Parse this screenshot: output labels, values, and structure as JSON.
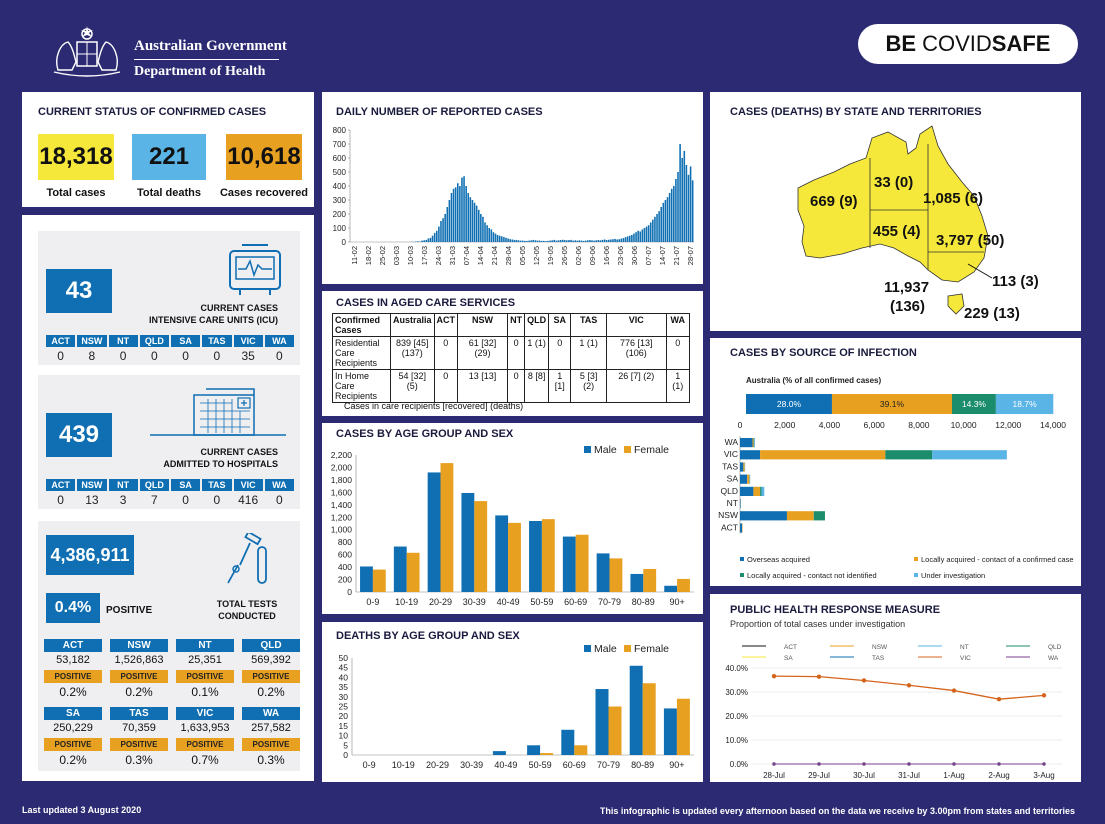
{
  "header": {
    "gov_line1": "Australian Government",
    "gov_line2": "Department of Health",
    "covid_be": "BE",
    "covid_covid": "COVID",
    "covid_safe": "SAFE"
  },
  "status": {
    "title": "CURRENT STATUS OF CONFIRMED CASES",
    "total_cases": "18,318",
    "total_cases_label": "Total cases",
    "total_deaths": "221",
    "total_deaths_label": "Total deaths",
    "recovered": "10,618",
    "recovered_label": "Cases recovered"
  },
  "states": [
    "ACT",
    "NSW",
    "NT",
    "QLD",
    "SA",
    "TAS",
    "VIC",
    "WA"
  ],
  "icu": {
    "value": "43",
    "label1": "CURRENT CASES",
    "label2": "INTENSIVE CARE UNITS (ICU)",
    "by_state": [
      "0",
      "8",
      "0",
      "0",
      "0",
      "0",
      "35",
      "0"
    ]
  },
  "hospital": {
    "value": "439",
    "label1": "CURRENT CASES",
    "label2": "ADMITTED TO HOSPITALS",
    "by_state": [
      "0",
      "13",
      "3",
      "7",
      "0",
      "0",
      "416",
      "0"
    ]
  },
  "tests": {
    "total": "4,386,911",
    "pct": "0.4%",
    "positive_label": "POSITIVE",
    "label1": "TOTAL TESTS",
    "label2": "CONDUCTED",
    "pos_tag": "POSITIVE",
    "row1": [
      {
        "state": "ACT",
        "tests": "53,182",
        "pct": "0.2%"
      },
      {
        "state": "NSW",
        "tests": "1,526,863",
        "pct": "0.2%"
      },
      {
        "state": "NT",
        "tests": "25,351",
        "pct": "0.1%"
      },
      {
        "state": "QLD",
        "tests": "569,392",
        "pct": "0.2%"
      }
    ],
    "row2": [
      {
        "state": "SA",
        "tests": "250,229",
        "pct": "0.2%"
      },
      {
        "state": "TAS",
        "tests": "70,359",
        "pct": "0.3%"
      },
      {
        "state": "VIC",
        "tests": "1,633,953",
        "pct": "0.7%"
      },
      {
        "state": "WA",
        "tests": "257,582",
        "pct": "0.3%"
      }
    ]
  },
  "daily": {
    "title": "DAILY NUMBER OF REPORTED CASES"
  },
  "aged": {
    "title": "CASES IN AGED CARE SERVICES",
    "headers": [
      "Confirmed Cases",
      "Australia",
      "ACT",
      "NSW",
      "NT",
      "QLD",
      "SA",
      "TAS",
      "VIC",
      "WA"
    ],
    "rows": [
      [
        "Residential Care Recipients",
        "839 [45] (137)",
        "0",
        "61 [32] (29)",
        "0",
        "1 (1)",
        "0",
        "1 (1)",
        "776 [13] (106)",
        "0"
      ],
      [
        "In Home Care Recipients",
        "54 [32] (5)",
        "0",
        "13 [13]",
        "0",
        "8 [8]",
        "1 [1]",
        "5 [3] (2)",
        "26 [7] (2)",
        "1 (1)"
      ]
    ],
    "footnote": "Cases in care recipients [recovered] (deaths)"
  },
  "map": {
    "title": "CASES (DEATHS) BY STATE AND TERRITORIES",
    "wa": "669 (9)",
    "nt": "33 (0)",
    "qld": "1,085 (6)",
    "sa": "455 (4)",
    "nsw": "3,797 (50)",
    "act": "113 (3)",
    "vic_cases": "11,937",
    "vic_deaths": "(136)",
    "tas": "229 (13)"
  },
  "source_title": "CASES BY SOURCE OF INFECTION",
  "age_title": "CASES BY AGE GROUP AND SEX",
  "deaths_title": "DEATHS BY AGE GROUP AND SEX",
  "response": {
    "title": "PUBLIC HEALTH RESPONSE MEASURE",
    "subtitle": "Proportion of total cases under investigation"
  },
  "footer": {
    "updated": "Last updated 3 August 2020",
    "note": "This infographic is updated every afternoon based on the data we receive by 3.00pm from states and territories"
  },
  "colors": {
    "navy": "#2b2a72",
    "blue": "#0f6fb2",
    "orange": "#e8a020",
    "yellow": "#f5e83a",
    "teal": "#1b8c6c",
    "lightblue": "#5ab4e5",
    "vic_line": "#d4641c"
  },
  "chart_data": [
    {
      "id": "daily",
      "type": "bar",
      "title": "DAILY NUMBER OF REPORTED CASES",
      "ylim": [
        0,
        800
      ],
      "yticks": [
        0,
        100,
        200,
        300,
        400,
        500,
        600,
        700,
        800
      ],
      "xticklabels": [
        "11-02",
        "18-02",
        "25-02",
        "03-03",
        "10-03",
        "17-03",
        "24-03",
        "31-03",
        "07-04",
        "14-04",
        "21-04",
        "28-04",
        "05-05",
        "12-05",
        "19-05",
        "26-05",
        "02-06",
        "09-06",
        "16-06",
        "23-06",
        "30-06",
        "07-07",
        "14-07",
        "21-07",
        "28-07"
      ],
      "values": [
        0,
        0,
        0,
        0,
        0,
        0,
        0,
        0,
        0,
        0,
        0,
        0,
        0,
        0,
        0,
        0,
        0,
        0,
        0,
        0,
        0,
        0,
        0,
        0,
        0,
        0,
        0,
        0,
        0,
        1,
        1,
        3,
        5,
        3,
        10,
        12,
        15,
        25,
        30,
        45,
        65,
        80,
        110,
        150,
        170,
        200,
        250,
        300,
        350,
        380,
        390,
        420,
        400,
        460,
        470,
        400,
        350,
        320,
        300,
        280,
        260,
        230,
        200,
        180,
        140,
        120,
        100,
        90,
        70,
        60,
        50,
        45,
        40,
        35,
        30,
        25,
        20,
        18,
        15,
        15,
        12,
        10,
        10,
        8,
        8,
        10,
        12,
        15,
        12,
        10,
        10,
        8,
        8,
        6,
        8,
        10,
        12,
        15,
        10,
        12,
        14,
        16,
        14,
        12,
        14,
        15,
        10,
        12,
        10,
        12,
        10,
        8,
        10,
        12,
        14,
        12,
        10,
        12,
        14,
        12,
        15,
        18,
        14,
        16,
        18,
        20,
        22,
        18,
        20,
        24,
        28,
        35,
        40,
        45,
        50,
        60,
        70,
        80,
        75,
        90,
        100,
        110,
        120,
        140,
        160,
        180,
        200,
        220,
        250,
        280,
        300,
        320,
        350,
        380,
        400,
        450,
        500,
        700,
        600,
        650,
        550,
        480,
        540,
        440
      ]
    },
    {
      "id": "source",
      "type": "bar",
      "title": "CASES BY SOURCE OF INFECTION",
      "subtitle": "Australia (% of all confirmed cases)",
      "summary": [
        {
          "name": "Overseas acquired",
          "pct": 28.0,
          "label": "28.0%"
        },
        {
          "name": "Locally acquired - contact of a confirmed case",
          "pct": 39.1,
          "label": "39.1%"
        },
        {
          "name": "Locally acquired - contact not identified",
          "pct": 14.3,
          "label": "14.3%"
        },
        {
          "name": "Under investigation",
          "pct": 18.7,
          "label": "18.7%"
        }
      ],
      "xlim": [
        0,
        14000
      ],
      "xticks": [
        "0",
        "2,000",
        "4,000",
        "6,000",
        "8,000",
        "10,000",
        "12,000",
        "14,000"
      ],
      "categories": [
        "WA",
        "VIC",
        "TAS",
        "SA",
        "QLD",
        "NT",
        "NSW",
        "ACT"
      ],
      "series": [
        {
          "name": "Overseas acquired",
          "values": [
            560,
            900,
            150,
            320,
            600,
            30,
            2100,
            90
          ]
        },
        {
          "name": "Locally acquired - contact of a confirmed case",
          "values": [
            50,
            5600,
            60,
            100,
            300,
            3,
            1200,
            20
          ]
        },
        {
          "name": "Locally acquired - contact not identified",
          "values": [
            20,
            2100,
            5,
            10,
            60,
            0,
            500,
            3
          ]
        },
        {
          "name": "Under investigation",
          "values": [
            39,
            3337,
            14,
            25,
            125,
            0,
            0,
            0
          ]
        }
      ]
    },
    {
      "id": "age",
      "type": "bar",
      "title": "CASES BY AGE GROUP AND SEX",
      "ylim": [
        0,
        2200
      ],
      "yticks": [
        "0",
        "200",
        "400",
        "600",
        "800",
        "1,000",
        "1,200",
        "1,400",
        "1,600",
        "1,800",
        "2,000",
        "2,200"
      ],
      "categories": [
        "0-9",
        "10-19",
        "20-29",
        "30-39",
        "40-49",
        "50-59",
        "60-69",
        "70-79",
        "80-89",
        "90+"
      ],
      "series": [
        {
          "name": "Male",
          "values": [
            410,
            730,
            1920,
            1590,
            1230,
            1140,
            890,
            620,
            290,
            100
          ]
        },
        {
          "name": "Female",
          "values": [
            360,
            630,
            2070,
            1460,
            1110,
            1170,
            920,
            540,
            370,
            210
          ]
        }
      ]
    },
    {
      "id": "deaths",
      "type": "bar",
      "title": "DEATHS BY AGE GROUP AND SEX",
      "ylim": [
        0,
        50
      ],
      "yticks": [
        "0",
        "5",
        "10",
        "15",
        "20",
        "25",
        "30",
        "35",
        "40",
        "45",
        "50"
      ],
      "categories": [
        "0-9",
        "10-19",
        "20-29",
        "30-39",
        "40-49",
        "50-59",
        "60-69",
        "70-79",
        "80-89",
        "90+"
      ],
      "series": [
        {
          "name": "Male",
          "values": [
            0,
            0,
            0,
            0,
            2,
            5,
            13,
            34,
            46,
            24
          ]
        },
        {
          "name": "Female",
          "values": [
            0,
            0,
            0,
            0,
            0,
            1,
            5,
            25,
            37,
            29
          ]
        }
      ]
    },
    {
      "id": "response",
      "type": "line",
      "title": "PUBLIC HEALTH RESPONSE MEASURE",
      "subtitle": "Proportion of total cases under investigation",
      "ylim": [
        0,
        40
      ],
      "yticks": [
        "0.0%",
        "10.0%",
        "20.0%",
        "30.0%",
        "40.0%"
      ],
      "x": [
        "28-Jul",
        "29-Jul",
        "30-Jul",
        "31-Jul",
        "1-Aug",
        "2-Aug",
        "3-Aug"
      ],
      "series": [
        {
          "name": "ACT",
          "values": [
            0,
            0,
            0,
            0,
            0,
            0,
            0
          ]
        },
        {
          "name": "NSW",
          "values": [
            0,
            0,
            0,
            0,
            0,
            0,
            0
          ]
        },
        {
          "name": "NT",
          "values": [
            0,
            0,
            0,
            0,
            0,
            0,
            0
          ]
        },
        {
          "name": "QLD",
          "values": [
            0,
            0,
            0,
            0,
            0,
            0,
            0
          ]
        },
        {
          "name": "SA",
          "values": [
            0,
            0,
            0,
            0,
            0,
            0,
            0
          ]
        },
        {
          "name": "TAS",
          "values": [
            0,
            0,
            0,
            0,
            0,
            0,
            0
          ]
        },
        {
          "name": "VIC",
          "values": [
            36.6,
            36.4,
            34.8,
            32.8,
            30.6,
            27,
            28.6
          ]
        },
        {
          "name": "WA",
          "values": [
            0,
            0,
            0,
            0,
            0,
            0,
            0
          ]
        }
      ]
    }
  ]
}
